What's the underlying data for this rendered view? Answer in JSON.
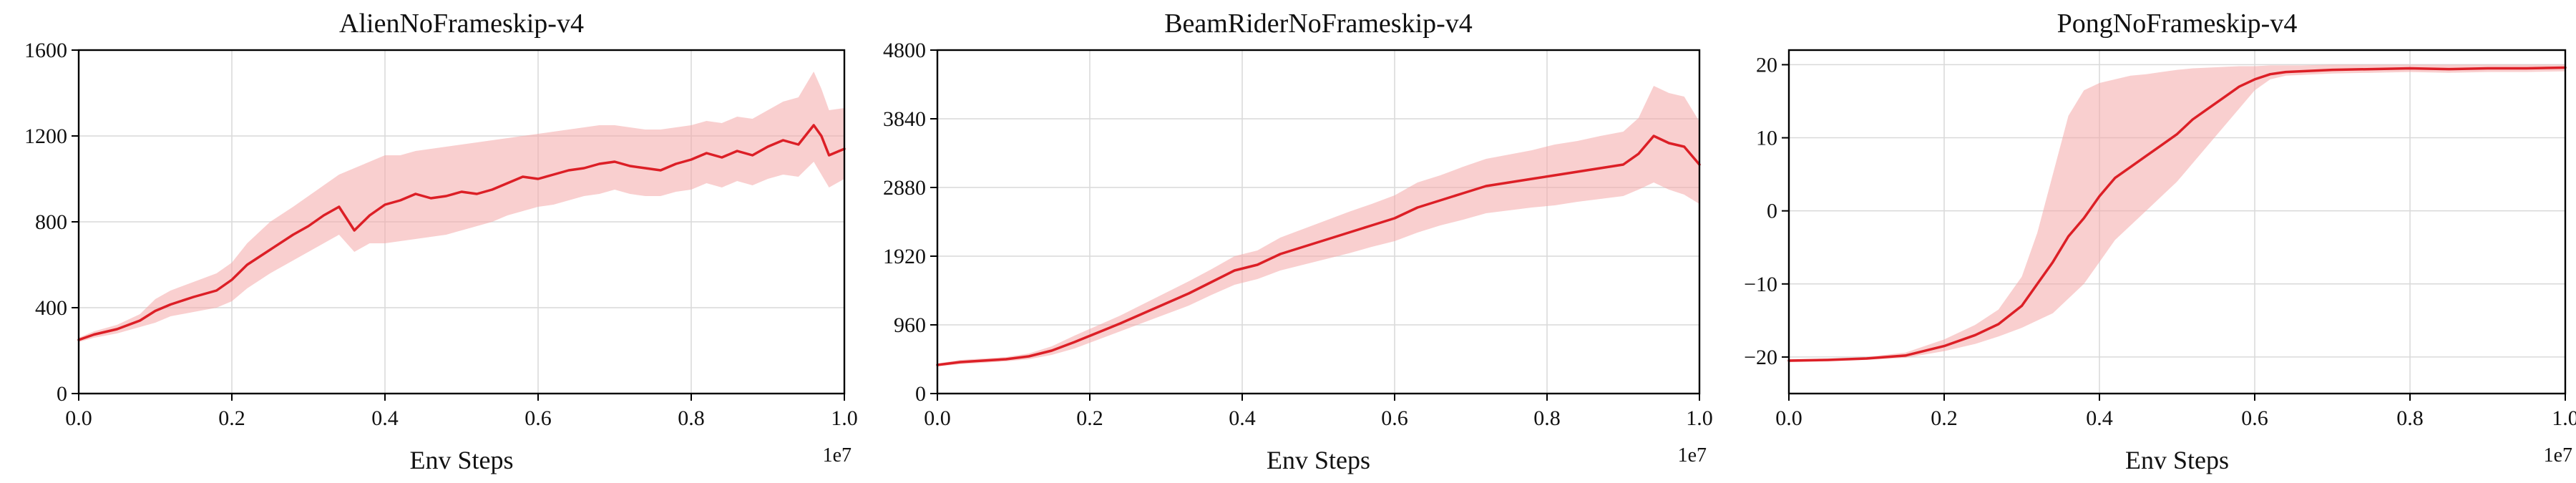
{
  "colors": {
    "line": "#dc1f26",
    "band": "#f4a7a8",
    "grid": "#d9d9d9",
    "axis": "#000000"
  },
  "chart_data": [
    {
      "type": "line",
      "title": "AlienNoFrameskip-v4",
      "xlabel": "Env Steps",
      "ylabel": "",
      "x_offset": "1e7",
      "xlim": [
        0,
        1.0
      ],
      "ylim": [
        0,
        1600
      ],
      "xticks": [
        0.0,
        0.2,
        0.4,
        0.6,
        0.8,
        1.0
      ],
      "xtick_labels": [
        "0.0",
        "0.2",
        "0.4",
        "0.6",
        "0.8",
        "1.0"
      ],
      "yticks": [
        0,
        400,
        800,
        1200,
        1600
      ],
      "ytick_labels": [
        "0",
        "400",
        "800",
        "1200",
        "1600"
      ],
      "grid": true,
      "series": [
        {
          "x": [
            0.0,
            0.02,
            0.05,
            0.08,
            0.1,
            0.12,
            0.15,
            0.18,
            0.2,
            0.22,
            0.25,
            0.28,
            0.3,
            0.32,
            0.34,
            0.36,
            0.38,
            0.4,
            0.42,
            0.44,
            0.46,
            0.48,
            0.5,
            0.52,
            0.54,
            0.56,
            0.58,
            0.6,
            0.62,
            0.64,
            0.66,
            0.68,
            0.7,
            0.72,
            0.74,
            0.76,
            0.78,
            0.8,
            0.82,
            0.84,
            0.86,
            0.88,
            0.9,
            0.92,
            0.94,
            0.96,
            0.97,
            0.98,
            1.0
          ],
          "y": [
            250,
            275,
            300,
            340,
            385,
            415,
            450,
            480,
            530,
            600,
            670,
            740,
            780,
            830,
            870,
            760,
            830,
            880,
            900,
            930,
            910,
            920,
            940,
            930,
            950,
            980,
            1010,
            1000,
            1020,
            1040,
            1050,
            1070,
            1080,
            1060,
            1050,
            1040,
            1070,
            1090,
            1120,
            1100,
            1130,
            1110,
            1150,
            1180,
            1160,
            1250,
            1200,
            1110,
            1140
          ],
          "y_low": [
            240,
            260,
            280,
            310,
            330,
            360,
            380,
            400,
            430,
            490,
            560,
            620,
            660,
            700,
            740,
            660,
            700,
            700,
            710,
            720,
            730,
            740,
            760,
            780,
            800,
            830,
            850,
            870,
            880,
            900,
            920,
            930,
            950,
            930,
            920,
            920,
            940,
            950,
            980,
            960,
            990,
            970,
            1000,
            1020,
            1010,
            1080,
            1020,
            960,
            1000
          ],
          "y_high": [
            260,
            290,
            320,
            370,
            440,
            480,
            520,
            560,
            610,
            700,
            800,
            870,
            920,
            970,
            1020,
            1050,
            1080,
            1110,
            1110,
            1130,
            1140,
            1150,
            1160,
            1170,
            1180,
            1190,
            1200,
            1210,
            1220,
            1230,
            1240,
            1250,
            1250,
            1240,
            1230,
            1230,
            1240,
            1250,
            1270,
            1260,
            1290,
            1280,
            1320,
            1360,
            1380,
            1500,
            1420,
            1320,
            1330
          ]
        }
      ]
    },
    {
      "type": "line",
      "title": "BeamRiderNoFrameskip-v4",
      "xlabel": "Env Steps",
      "ylabel": "",
      "x_offset": "1e7",
      "xlim": [
        0,
        1.0
      ],
      "ylim": [
        0,
        4800
      ],
      "xticks": [
        0.0,
        0.2,
        0.4,
        0.6,
        0.8,
        1.0
      ],
      "xtick_labels": [
        "0.0",
        "0.2",
        "0.4",
        "0.6",
        "0.8",
        "1.0"
      ],
      "yticks": [
        0,
        960,
        1920,
        2880,
        3840,
        4800
      ],
      "ytick_labels": [
        "0",
        "960",
        "1920",
        "2880",
        "3840",
        "4800"
      ],
      "grid": true,
      "series": [
        {
          "x": [
            0.0,
            0.03,
            0.06,
            0.09,
            0.12,
            0.15,
            0.18,
            0.21,
            0.24,
            0.27,
            0.3,
            0.33,
            0.36,
            0.39,
            0.42,
            0.45,
            0.48,
            0.51,
            0.54,
            0.57,
            0.6,
            0.63,
            0.66,
            0.69,
            0.72,
            0.75,
            0.78,
            0.81,
            0.84,
            0.87,
            0.9,
            0.92,
            0.94,
            0.96,
            0.98,
            1.0
          ],
          "y": [
            400,
            440,
            460,
            480,
            520,
            600,
            720,
            850,
            980,
            1120,
            1260,
            1400,
            1560,
            1720,
            1800,
            1950,
            2050,
            2150,
            2250,
            2350,
            2450,
            2600,
            2700,
            2800,
            2900,
            2950,
            3000,
            3050,
            3100,
            3150,
            3200,
            3350,
            3600,
            3500,
            3450,
            3200
          ],
          "y_low": [
            380,
            410,
            430,
            450,
            480,
            540,
            630,
            750,
            870,
            990,
            1110,
            1230,
            1380,
            1520,
            1600,
            1720,
            1800,
            1880,
            1960,
            2050,
            2130,
            2250,
            2350,
            2430,
            2520,
            2560,
            2600,
            2630,
            2680,
            2720,
            2760,
            2850,
            2950,
            2850,
            2780,
            2650
          ],
          "y_high": [
            420,
            470,
            490,
            510,
            560,
            660,
            810,
            950,
            1090,
            1250,
            1410,
            1570,
            1740,
            1920,
            2000,
            2180,
            2300,
            2420,
            2540,
            2650,
            2770,
            2950,
            3050,
            3170,
            3280,
            3340,
            3400,
            3480,
            3530,
            3600,
            3660,
            3850,
            4300,
            4200,
            4150,
            3800
          ]
        }
      ]
    },
    {
      "type": "line",
      "title": "PongNoFrameskip-v4",
      "xlabel": "Env Steps",
      "ylabel": "",
      "x_offset": "1e7",
      "xlim": [
        0,
        1.0
      ],
      "ylim": [
        -25,
        22
      ],
      "xticks": [
        0.0,
        0.2,
        0.4,
        0.6,
        0.8,
        1.0
      ],
      "xtick_labels": [
        "0.0",
        "0.2",
        "0.4",
        "0.6",
        "0.8",
        "1.0"
      ],
      "yticks": [
        -20,
        -10,
        0,
        10,
        20
      ],
      "ytick_labels": [
        "−20",
        "−10",
        "0",
        "10",
        "20"
      ],
      "grid": true,
      "series": [
        {
          "x": [
            0.0,
            0.05,
            0.1,
            0.15,
            0.2,
            0.24,
            0.27,
            0.3,
            0.32,
            0.34,
            0.36,
            0.38,
            0.4,
            0.42,
            0.44,
            0.46,
            0.48,
            0.5,
            0.52,
            0.54,
            0.56,
            0.58,
            0.6,
            0.62,
            0.64,
            0.66,
            0.7,
            0.75,
            0.8,
            0.85,
            0.9,
            0.95,
            1.0
          ],
          "y": [
            -20.5,
            -20.4,
            -20.2,
            -19.8,
            -18.5,
            -17,
            -15.5,
            -13,
            -10,
            -7,
            -3.5,
            -1,
            2,
            4.5,
            6,
            7.5,
            9,
            10.5,
            12.5,
            14,
            15.5,
            17,
            18,
            18.7,
            19,
            19.1,
            19.3,
            19.4,
            19.5,
            19.4,
            19.5,
            19.5,
            19.6
          ],
          "y_low": [
            -20.7,
            -20.6,
            -20.4,
            -20.1,
            -19.2,
            -18.2,
            -17.2,
            -16,
            -15,
            -14,
            -12,
            -10,
            -7,
            -4,
            -2,
            0,
            2,
            4,
            6.5,
            9,
            11.5,
            14,
            16.5,
            18,
            18.5,
            18.6,
            18.8,
            18.9,
            19,
            18.9,
            19,
            19,
            19.1
          ],
          "y_high": [
            -20.3,
            -20.2,
            -20,
            -19.4,
            -17.6,
            -15.6,
            -13.5,
            -9,
            -3,
            5,
            13,
            16.5,
            17.5,
            18,
            18.5,
            18.7,
            19,
            19.3,
            19.5,
            19.6,
            19.7,
            19.8,
            19.8,
            19.9,
            19.9,
            19.9,
            20,
            20,
            20,
            20,
            20,
            20,
            20
          ]
        }
      ]
    }
  ]
}
